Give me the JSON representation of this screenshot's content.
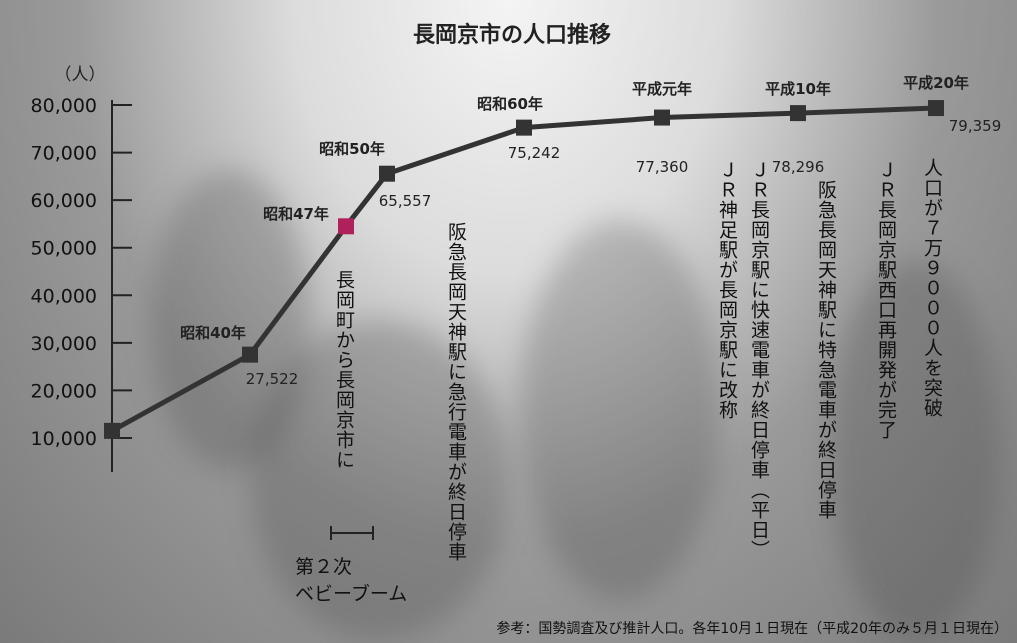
{
  "chart_data": {
    "type": "line",
    "title": "長岡京市の人口推移",
    "y_label": "（人）",
    "categories": [
      null,
      "昭和40年",
      "昭和47年",
      "昭和50年",
      "昭和60年",
      "平成元年",
      "平成10年",
      "平成20年"
    ],
    "series": [
      {
        "color": "#333333",
        "values": [
          11500,
          27522,
          54500,
          65557,
          75242,
          77360,
          78296,
          79359
        ],
        "value_labels": [
          null,
          "27,522",
          null,
          "65,557",
          "75,242",
          "77,360",
          "78,296",
          "79,359"
        ],
        "marker_colors": [
          "#333333",
          "#333333",
          "#b0205a",
          "#333333",
          "#333333",
          "#333333",
          "#333333",
          "#333333"
        ]
      }
    ],
    "ylim": [
      10000,
      80000
    ],
    "yticks": [
      {
        "value": 10000,
        "label": "10,000"
      },
      {
        "value": 20000,
        "label": "20,000"
      },
      {
        "value": 30000,
        "label": "30,000"
      },
      {
        "value": 40000,
        "label": "40,000"
      },
      {
        "value": 50000,
        "label": "50,000"
      },
      {
        "value": 60000,
        "label": "60,000"
      },
      {
        "value": 70000,
        "label": "70,000"
      },
      {
        "value": 80000,
        "label": "80,000"
      }
    ],
    "annotations": [
      "長岡町から長岡京市に",
      "阪急長岡天神駅に急行電車が終日停車",
      "ＪＲ神足駅が長岡京駅に改称",
      "ＪＲ長岡京駅に快速電車が終日停車（平日）",
      "阪急長岡天神駅に特急電車が終日停車",
      "ＪＲ長岡京駅西口再開発が完了",
      "人口が７万９０００人を突破"
    ],
    "boom_label": [
      "第２次",
      "ベビーブーム"
    ],
    "note": "参考：国勢調査及び推計人口。各年10月１日現在（平成20年のみ５月１日現在）"
  }
}
